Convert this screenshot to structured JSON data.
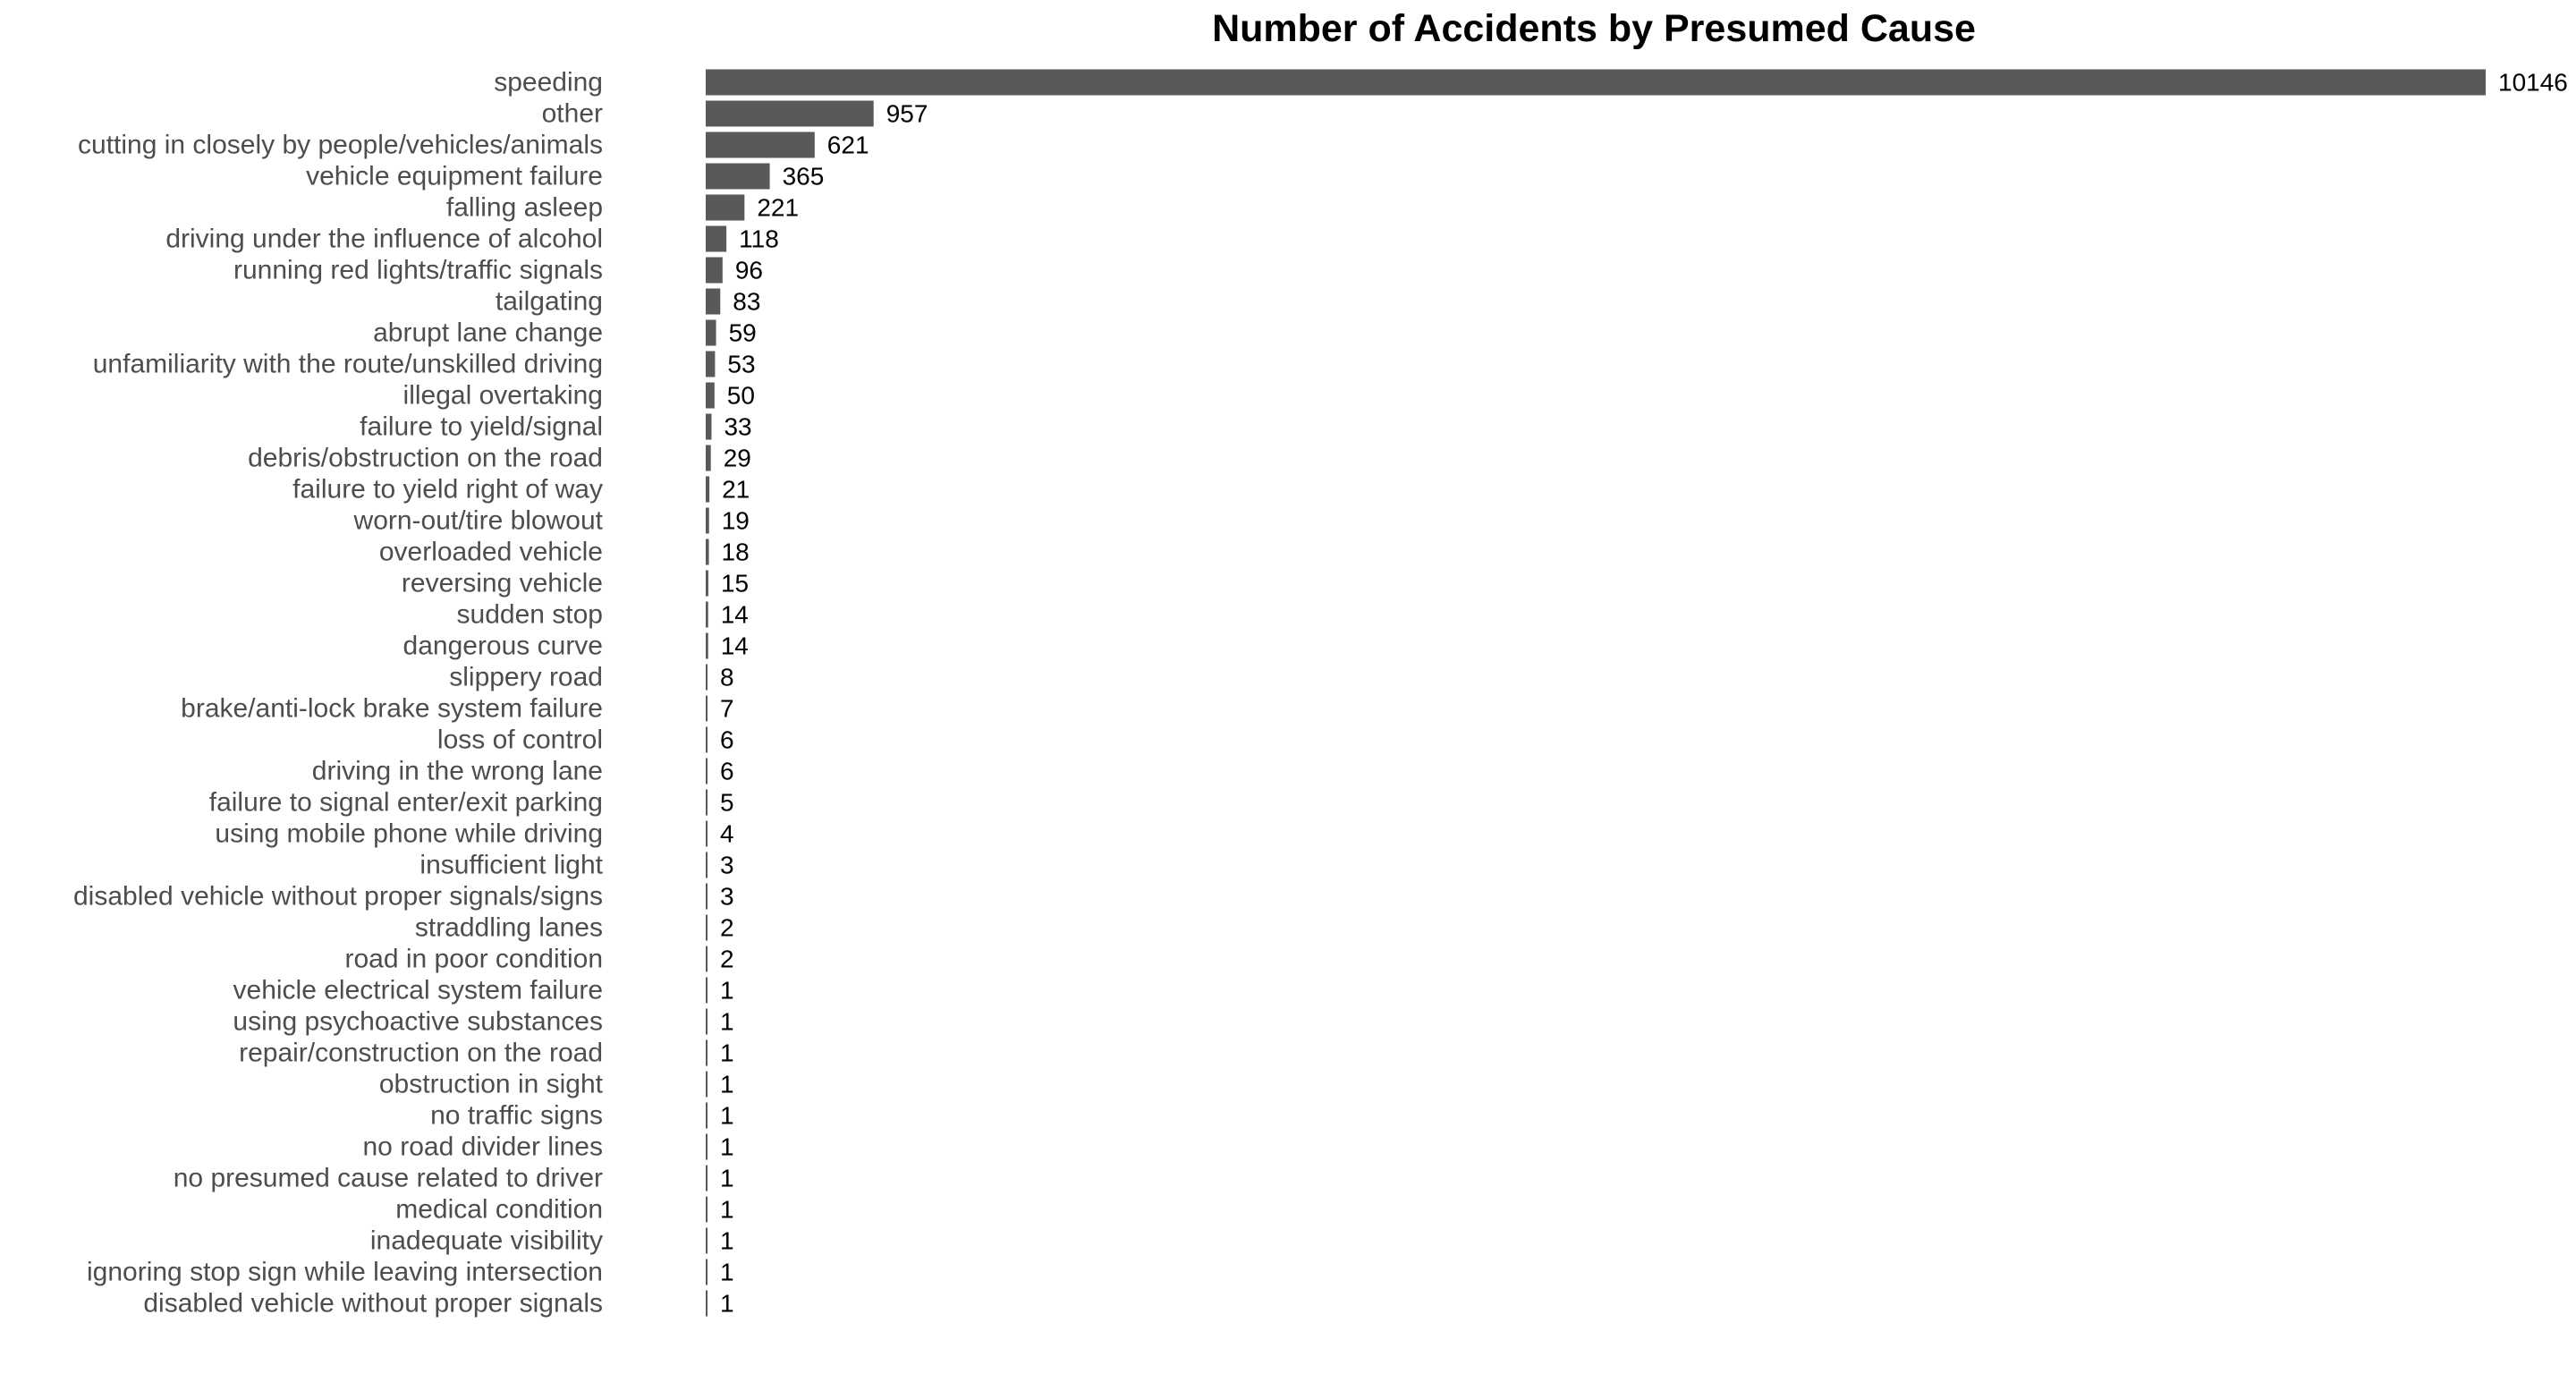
{
  "chart_data": {
    "type": "bar",
    "orientation": "horizontal",
    "title": "Number of Accidents by Presumed Cause",
    "xlabel": "",
    "ylabel": "",
    "grid": false,
    "legend": "none",
    "bar_color": "#595959",
    "categories": [
      "speeding",
      "other",
      "cutting in closely by people/vehicles/animals",
      "vehicle equipment failure",
      "falling asleep",
      "driving under the influence of alcohol",
      "running red lights/traffic signals",
      "tailgating",
      "abrupt lane change",
      "unfamiliarity with the route/unskilled driving",
      "illegal overtaking",
      "failure to yield/signal",
      "debris/obstruction on the road",
      "failure to yield right of way",
      "worn-out/tire blowout",
      "overloaded vehicle",
      "reversing vehicle",
      "sudden stop",
      "dangerous curve",
      "slippery road",
      "brake/anti-lock brake system failure",
      "loss of control",
      "driving in the wrong lane",
      "failure to signal enter/exit parking",
      "using mobile phone while driving",
      "insufficient light",
      "disabled vehicle without proper signals/signs",
      "straddling lanes",
      "road in poor condition",
      "vehicle electrical system failure",
      "using psychoactive substances",
      "repair/construction on the road",
      "obstruction in sight",
      "no traffic signs",
      "no road divider lines",
      "no presumed cause related to driver",
      "medical condition",
      "inadequate visibility",
      "ignoring stop sign while leaving intersection",
      "disabled vehicle without proper signals"
    ],
    "values": [
      10146,
      957,
      621,
      365,
      221,
      118,
      96,
      83,
      59,
      53,
      50,
      33,
      29,
      21,
      19,
      18,
      15,
      14,
      14,
      8,
      7,
      6,
      6,
      5,
      4,
      3,
      3,
      2,
      2,
      1,
      1,
      1,
      1,
      1,
      1,
      1,
      1,
      1,
      1,
      1
    ],
    "value_labels": [
      "10146",
      "957",
      "621",
      "365",
      "221",
      "118",
      "96",
      "83",
      "59",
      "53",
      "50",
      "33",
      "29",
      "21",
      "19",
      "18",
      "15",
      "14",
      "14",
      "8",
      "7",
      "6",
      "6",
      "5",
      "4",
      "3",
      "3",
      "2",
      "2",
      "1",
      "1",
      "1",
      "1",
      "1",
      "1",
      "1",
      "1",
      "1",
      "1",
      "1"
    ]
  }
}
